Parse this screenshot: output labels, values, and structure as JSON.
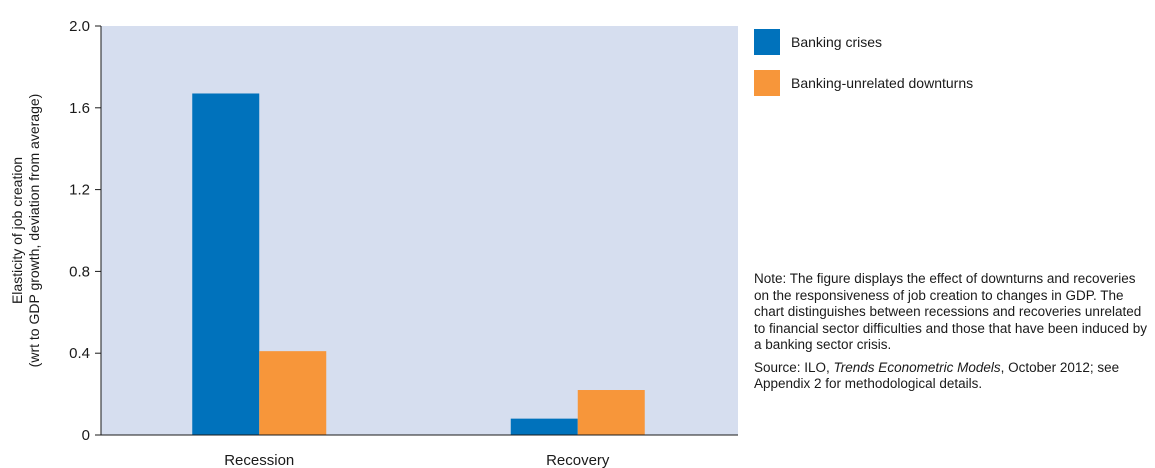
{
  "chart_data": {
    "type": "bar",
    "categories": [
      "Recession",
      "Recovery"
    ],
    "series": [
      {
        "name": "Banking crises",
        "values": [
          1.67,
          0.08
        ],
        "color": "#0072bc"
      },
      {
        "name": "Banking-unrelated downturns",
        "values": [
          0.41,
          0.22
        ],
        "color": "#f7963a"
      }
    ],
    "ylabel_lines": [
      "Elasticity of job creation",
      "(wrt to GDP growth, deviation from average)"
    ],
    "xlabel": "",
    "ylim": [
      0,
      2.0
    ],
    "yticks": [
      "0",
      "0.4",
      "0.8",
      "1.2",
      "1.6",
      "2.0"
    ],
    "plot_background": "#d6deef",
    "grid": false,
    "legend_position": "right"
  },
  "note": {
    "text": "Note: The figure displays the effect of downturns and recoveries on the responsiveness of job creation to changes in GDP. The chart distinguishes between recessions and recoveries unrelated to financial sector difficulties and those that have been induced by a banking sector crisis.",
    "source_prefix": "Source: ILO, ",
    "source_title": "Trends Econometric Models",
    "source_suffix": ", October 2012; see Appendix 2 for methodological details."
  }
}
